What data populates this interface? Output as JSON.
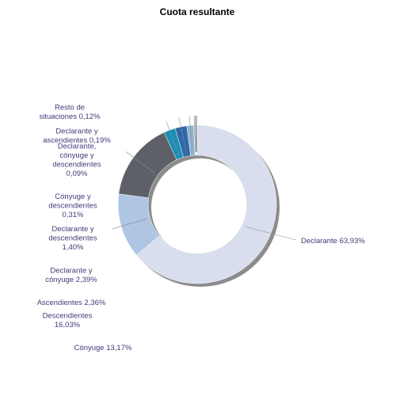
{
  "chart_data": {
    "type": "pie",
    "variant": "donut",
    "title": "Cuota resultante",
    "slices": [
      {
        "label": "Declarante 63,93%",
        "value": 63.93,
        "color": "#d9deee"
      },
      {
        "label": "Cónyuge 13,17%",
        "value": 13.17,
        "color": "#aec5e3"
      },
      {
        "label": "Descendientes 16,03%",
        "value": 16.03,
        "color": "#5d6167"
      },
      {
        "label": "Ascendientes 2,36%",
        "value": 2.36,
        "color": "#1b8fb5"
      },
      {
        "label": "Declarante y cónyuge 2,39%",
        "value": 2.39,
        "color": "#2e68a8"
      },
      {
        "label": "Declarante y descendientes 1,40%",
        "value": 1.4,
        "color": "#8fb4d2"
      },
      {
        "label": "Cónyuge y descendientes 0,31%",
        "value": 0.31,
        "color": "#d6dfec"
      },
      {
        "label": "Declarante, cónyuge y descendientes 0,09%",
        "value": 0.09,
        "color": "#4a4d52"
      },
      {
        "label": "Declarante y ascendientes 0,19%",
        "value": 0.19,
        "color": "#1c7fa3"
      },
      {
        "label": "Resto de situaciones 0,12%",
        "value": 0.12,
        "color": "#7fa7cc"
      }
    ],
    "label_color": "#3c3c7a",
    "title_color": "#000000",
    "shadow_color": "#8c8c8c",
    "leader_color": "#8c8c8c"
  }
}
